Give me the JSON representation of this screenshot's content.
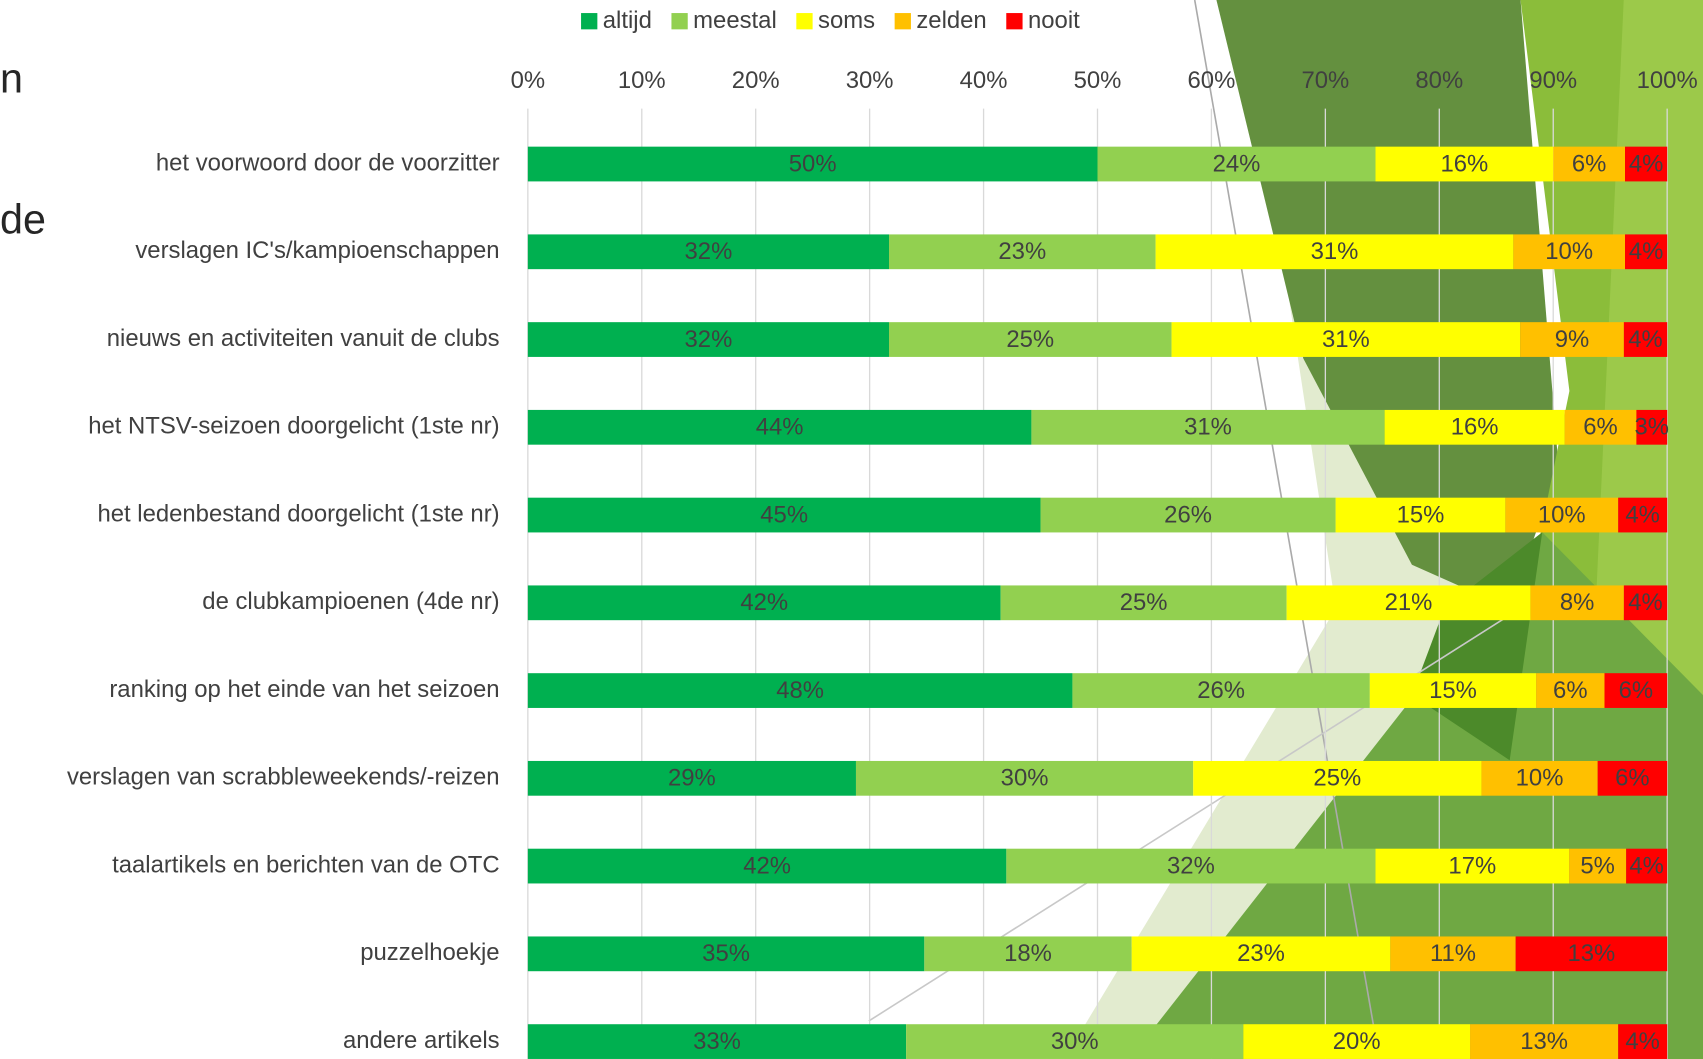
{
  "slide_title_fragments": [
    "n",
    "de"
  ],
  "chart_data": {
    "type": "stacked-bar-horizontal",
    "categories": [
      "het voorwoord door de voorzitter",
      "verslagen IC's/kampioenschappen",
      "nieuws en activiteiten vanuit de clubs",
      "het NTSV-seizoen doorgelicht (1ste nr)",
      "het ledenbestand doorgelicht (1ste nr)",
      "de clubkampioenen (4de nr)",
      "ranking op het einde van het seizoen",
      "verslagen van scrabbleweekends/-reizen",
      "taalartikels en berichten van de OTC",
      "puzzelhoekje",
      "andere artikels"
    ],
    "series": [
      {
        "name": "altijd",
        "color": "#00b050",
        "values": [
          50.0,
          31.7,
          31.7,
          44.2,
          45.0,
          41.5,
          47.8,
          28.8,
          42.0,
          34.8,
          33.2
        ],
        "value_labels": [
          "50%",
          "32%",
          "32%",
          "44%",
          "45%",
          "42%",
          "48%",
          "29%",
          "42%",
          "35%",
          "33%"
        ]
      },
      {
        "name": "meestal",
        "color": "#92d050",
        "values": [
          24.4,
          23.4,
          24.8,
          31.0,
          25.9,
          25.1,
          26.1,
          29.6,
          32.4,
          18.2,
          29.6
        ],
        "value_labels": [
          "24%",
          "23%",
          "25%",
          "31%",
          "26%",
          "25%",
          "26%",
          "30%",
          "32%",
          "18%",
          "30%"
        ]
      },
      {
        "name": "soms",
        "color": "#ffff00",
        "values": [
          15.6,
          31.4,
          30.6,
          15.8,
          14.9,
          21.4,
          14.6,
          25.3,
          17.0,
          22.7,
          19.9
        ],
        "value_labels": [
          "16%",
          "31%",
          "31%",
          "16%",
          "15%",
          "21%",
          "15%",
          "25%",
          "17%",
          "23%",
          "20%"
        ]
      },
      {
        "name": "zelden",
        "color": "#ffc000",
        "values": [
          6.3,
          9.8,
          9.1,
          6.3,
          9.9,
          8.2,
          6.0,
          10.2,
          5.0,
          11.0,
          13.0
        ],
        "value_labels": [
          "6%",
          "10%",
          "9%",
          "6%",
          "10%",
          "8%",
          "6%",
          "10%",
          "5%",
          "11%",
          "13%"
        ]
      },
      {
        "name": "nooit",
        "color": "#ff0000",
        "values": [
          3.7,
          3.7,
          3.8,
          2.7,
          4.3,
          3.8,
          5.5,
          6.1,
          3.6,
          13.3,
          4.3
        ],
        "value_labels": [
          "4%",
          "4%",
          "4%",
          "3%",
          "4%",
          "4%",
          "6%",
          "6%",
          "4%",
          "13%",
          "4%"
        ]
      }
    ],
    "xlim": [
      0,
      100
    ],
    "xticks": [
      {
        "value": 0,
        "label": "0%"
      },
      {
        "value": 10,
        "label": "10%"
      },
      {
        "value": 20,
        "label": "20%"
      },
      {
        "value": 30,
        "label": "30%"
      },
      {
        "value": 40,
        "label": "40%"
      },
      {
        "value": 50,
        "label": "50%"
      },
      {
        "value": 60,
        "label": "60%"
      },
      {
        "value": 70,
        "label": "70%"
      },
      {
        "value": 80,
        "label": "80%"
      },
      {
        "value": 90,
        "label": "90%"
      },
      {
        "value": 100,
        "label": "100%"
      }
    ],
    "grid": true,
    "legend": "top"
  }
}
